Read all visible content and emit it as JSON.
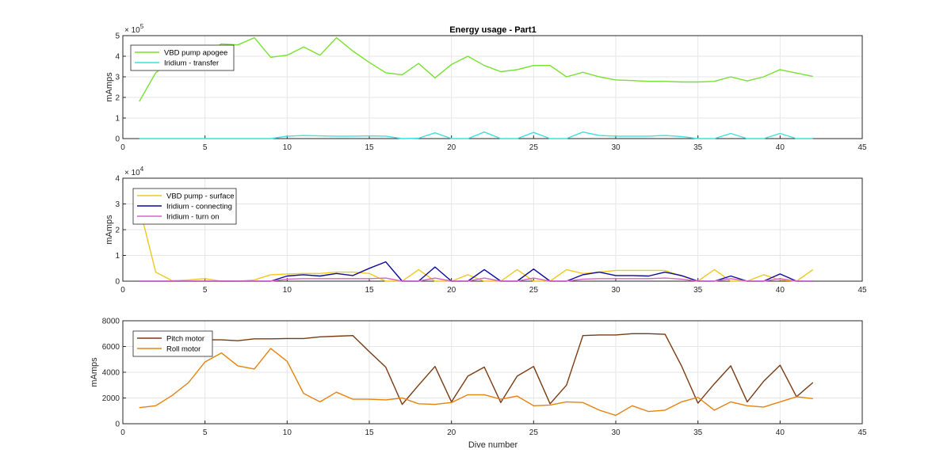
{
  "chart_data": [
    {
      "type": "line",
      "title": "Energy usage - Part1",
      "xlabel": "",
      "ylabel": "mAmps",
      "exponent_label": "× 10^5",
      "exponent_base": "× 10",
      "exponent_power": "5",
      "xlim": [
        0,
        45
      ],
      "ylim": [
        0,
        5
      ],
      "xticks": [
        0,
        5,
        10,
        15,
        20,
        25,
        30,
        35,
        40,
        45
      ],
      "yticks": [
        0,
        1,
        2,
        3,
        4,
        5
      ],
      "grid": true,
      "legend_position": "top-left",
      "series": [
        {
          "name": "VBD pump apogee",
          "color": "#77e030",
          "x": [
            1,
            2,
            3,
            4,
            5,
            6,
            7,
            8,
            9,
            10,
            11,
            12,
            13,
            14,
            15,
            16,
            17,
            18,
            19,
            20,
            21,
            22,
            23,
            24,
            25,
            26,
            27,
            28,
            29,
            30,
            31,
            32,
            33,
            34,
            35,
            36,
            37,
            38,
            39,
            40,
            41,
            42
          ],
          "y": [
            1.8,
            3.2,
            3.8,
            4.0,
            4.1,
            4.6,
            4.55,
            4.9,
            3.95,
            4.05,
            4.45,
            4.05,
            4.9,
            4.25,
            3.7,
            3.2,
            3.1,
            3.65,
            2.95,
            3.6,
            4.0,
            3.55,
            3.25,
            3.35,
            3.55,
            3.55,
            3.0,
            3.22,
            3.0,
            2.85,
            2.82,
            2.78,
            2.78,
            2.75,
            2.75,
            2.78,
            3.0,
            2.8,
            3.0,
            3.35,
            3.18,
            3.02
          ]
        },
        {
          "name": "Iridium - transfer",
          "color": "#3ce0e0",
          "x": [
            1,
            2,
            3,
            4,
            5,
            6,
            7,
            8,
            9,
            10,
            11,
            12,
            13,
            14,
            15,
            16,
            17,
            18,
            19,
            20,
            21,
            22,
            23,
            24,
            25,
            26,
            27,
            28,
            29,
            30,
            31,
            32,
            33,
            34,
            35,
            36,
            37,
            38,
            39,
            40,
            41,
            42
          ],
          "y": [
            0,
            0,
            0,
            0,
            0,
            0,
            0,
            0,
            0,
            0.12,
            0.15,
            0.13,
            0.12,
            0.12,
            0.13,
            0.12,
            0.0,
            0.02,
            0.28,
            0.0,
            0.0,
            0.32,
            0.0,
            0.0,
            0.3,
            0.0,
            0.0,
            0.32,
            0.15,
            0.12,
            0.12,
            0.12,
            0.15,
            0.1,
            0.0,
            0.0,
            0.25,
            0.0,
            0.0,
            0.25,
            0.0,
            0.0
          ]
        }
      ]
    },
    {
      "type": "line",
      "title": "",
      "xlabel": "",
      "ylabel": "mAmps",
      "exponent_label": "× 10^4",
      "exponent_base": "× 10",
      "exponent_power": "4",
      "xlim": [
        0,
        45
      ],
      "ylim": [
        0,
        4
      ],
      "xticks": [
        0,
        5,
        10,
        15,
        20,
        25,
        30,
        35,
        40,
        45
      ],
      "yticks": [
        0,
        1,
        2,
        3,
        4
      ],
      "grid": true,
      "legend_position": "top-left",
      "series": [
        {
          "name": "VBD pump - surface",
          "color": "#f0c81e",
          "x": [
            1,
            2,
            3,
            4,
            5,
            6,
            7,
            8,
            9,
            10,
            11,
            12,
            13,
            14,
            15,
            16,
            17,
            18,
            19,
            20,
            21,
            22,
            23,
            24,
            25,
            26,
            27,
            28,
            29,
            30,
            31,
            32,
            33,
            34,
            35,
            36,
            37,
            38,
            39,
            40,
            41,
            42
          ],
          "y": [
            2.9,
            0.35,
            0.02,
            0.05,
            0.1,
            0.0,
            0.0,
            0.05,
            0.25,
            0.28,
            0.3,
            0.3,
            0.35,
            0.35,
            0.3,
            0.0,
            0.0,
            0.45,
            0.0,
            0.0,
            0.25,
            0.0,
            0.0,
            0.45,
            0.0,
            0.0,
            0.45,
            0.3,
            0.35,
            0.42,
            0.42,
            0.42,
            0.42,
            0.2,
            0.0,
            0.45,
            0.0,
            0.0,
            0.25,
            0.05,
            0.0,
            0.45
          ]
        },
        {
          "name": "Iridium - connecting",
          "color": "#0a0a9a",
          "x": [
            1,
            2,
            3,
            4,
            5,
            6,
            7,
            8,
            9,
            10,
            11,
            12,
            13,
            14,
            15,
            16,
            17,
            18,
            19,
            20,
            21,
            22,
            23,
            24,
            25,
            26,
            27,
            28,
            29,
            30,
            31,
            32,
            33,
            34,
            35,
            36,
            37,
            38,
            39,
            40,
            41,
            42
          ],
          "y": [
            0,
            0,
            0,
            0,
            0,
            0,
            0,
            0,
            0,
            0.2,
            0.25,
            0.2,
            0.3,
            0.22,
            0.5,
            0.75,
            0.0,
            0.0,
            0.55,
            0.0,
            0.0,
            0.45,
            0.0,
            0.0,
            0.47,
            0.0,
            0.0,
            0.25,
            0.35,
            0.22,
            0.22,
            0.2,
            0.35,
            0.22,
            0.0,
            0.0,
            0.2,
            0.0,
            0.0,
            0.28,
            0.0,
            0.0
          ]
        },
        {
          "name": "Iridium - turn on",
          "color": "#d864c8",
          "x": [
            1,
            2,
            3,
            4,
            5,
            6,
            7,
            8,
            9,
            10,
            11,
            12,
            13,
            14,
            15,
            16,
            17,
            18,
            19,
            20,
            21,
            22,
            23,
            24,
            25,
            26,
            27,
            28,
            29,
            30,
            31,
            32,
            33,
            34,
            35,
            36,
            37,
            38,
            39,
            40,
            41,
            42
          ],
          "y": [
            0,
            0,
            0,
            0,
            0,
            0,
            0,
            0,
            0,
            0.08,
            0.1,
            0.1,
            0.1,
            0.1,
            0.1,
            0.12,
            0.0,
            0.0,
            0.12,
            0.0,
            0.0,
            0.12,
            0.0,
            0.0,
            0.12,
            0.0,
            0.0,
            0.08,
            0.1,
            0.1,
            0.1,
            0.1,
            0.12,
            0.08,
            0.0,
            0.0,
            0.1,
            0.0,
            0.0,
            0.1,
            0.0,
            0.0
          ]
        }
      ]
    },
    {
      "type": "line",
      "title": "",
      "xlabel": "Dive number",
      "ylabel": "mAmps",
      "xlim": [
        0,
        45
      ],
      "ylim": [
        0,
        8000
      ],
      "xticks": [
        0,
        5,
        10,
        15,
        20,
        25,
        30,
        35,
        40,
        45
      ],
      "yticks": [
        0,
        2000,
        4000,
        6000,
        8000
      ],
      "grid": true,
      "legend_position": "top-left",
      "series": [
        {
          "name": "Pitch motor",
          "color": "#7a3a10",
          "x": [
            1,
            2,
            3,
            4,
            5,
            6,
            7,
            8,
            9,
            10,
            11,
            12,
            13,
            14,
            15,
            16,
            17,
            18,
            19,
            20,
            21,
            22,
            23,
            24,
            25,
            26,
            27,
            28,
            29,
            30,
            31,
            32,
            33,
            34,
            35,
            36,
            37,
            38,
            39,
            40,
            41,
            42
          ],
          "y": [
            6500,
            6500,
            6500,
            6520,
            6520,
            6520,
            6450,
            6600,
            6600,
            6620,
            6620,
            6750,
            6800,
            6850,
            5600,
            4400,
            1500,
            3000,
            4450,
            1700,
            3700,
            4400,
            1650,
            3700,
            4450,
            1550,
            3000,
            6850,
            6900,
            6900,
            7000,
            7000,
            6950,
            4500,
            1600,
            3100,
            4500,
            1700,
            3300,
            4550,
            2100,
            3200
          ]
        },
        {
          "name": "Roll motor",
          "color": "#e6820e",
          "x": [
            1,
            2,
            3,
            4,
            5,
            6,
            7,
            8,
            9,
            10,
            11,
            12,
            13,
            14,
            15,
            16,
            17,
            18,
            19,
            20,
            21,
            22,
            23,
            24,
            25,
            26,
            27,
            28,
            29,
            30,
            31,
            32,
            33,
            34,
            35,
            36,
            37,
            38,
            39,
            40,
            41,
            42
          ],
          "y": [
            1250,
            1400,
            2200,
            3200,
            4800,
            5500,
            4500,
            4250,
            5850,
            4850,
            2350,
            1700,
            2450,
            1900,
            1900,
            1850,
            2000,
            1550,
            1500,
            1650,
            2250,
            2250,
            1900,
            2150,
            1400,
            1450,
            1700,
            1650,
            1050,
            650,
            1400,
            950,
            1050,
            1700,
            2050,
            1050,
            1700,
            1400,
            1300,
            1700,
            2100,
            1950
          ]
        }
      ]
    }
  ]
}
